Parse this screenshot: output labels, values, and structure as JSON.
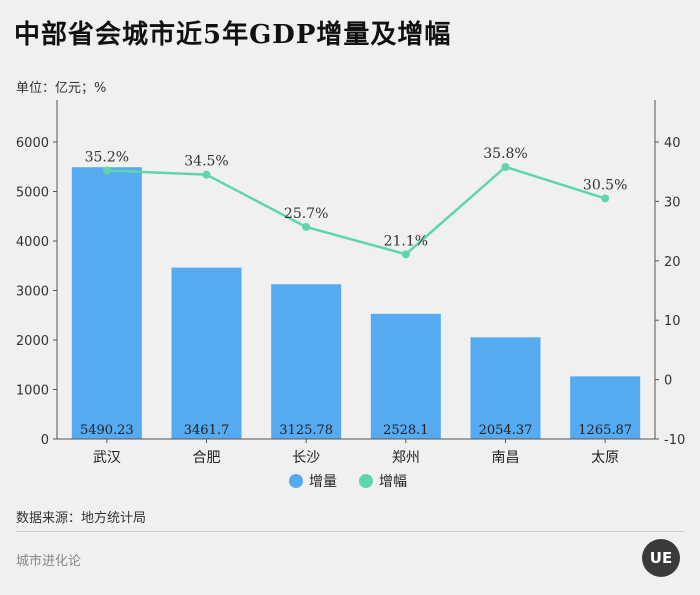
{
  "title": "中部省会城市近5年GDP增量及增幅",
  "unit_label": "单位：亿元；%",
  "source": "数据来源：地方统计局",
  "footer": "城市进化论",
  "brand_mark": "UE",
  "colors": {
    "bar": "#55aaf0",
    "line": "#5fd6aa",
    "axis": "#555555",
    "text": "#333333"
  },
  "chart_data": {
    "type": "bar+line",
    "categories": [
      "武汉",
      "合肥",
      "长沙",
      "郑州",
      "南昌",
      "太原"
    ],
    "series": [
      {
        "name": "增量",
        "type": "bar",
        "axis": "left",
        "values": [
          5490.23,
          3461.7,
          3125.78,
          2528.1,
          2054.37,
          1265.87
        ],
        "labels": [
          "5490.23",
          "3461.7",
          "3125.78",
          "2528.1",
          "2054.37",
          "1265.87"
        ]
      },
      {
        "name": "增幅",
        "type": "line",
        "axis": "right",
        "values": [
          35.2,
          34.5,
          25.7,
          21.1,
          35.8,
          30.5
        ],
        "labels": [
          "35.2%",
          "34.5%",
          "25.7%",
          "21.1%",
          "35.8%",
          "30.5%"
        ]
      }
    ],
    "y_left": {
      "min": 0,
      "max": 6000,
      "ticks": [
        0,
        1000,
        2000,
        3000,
        4000,
        5000,
        6000
      ]
    },
    "y_right": {
      "min": -10,
      "max": 40,
      "ticks": [
        -10,
        0,
        10,
        20,
        30,
        40
      ]
    },
    "legend": {
      "position": "bottom-center"
    },
    "grid": false
  }
}
